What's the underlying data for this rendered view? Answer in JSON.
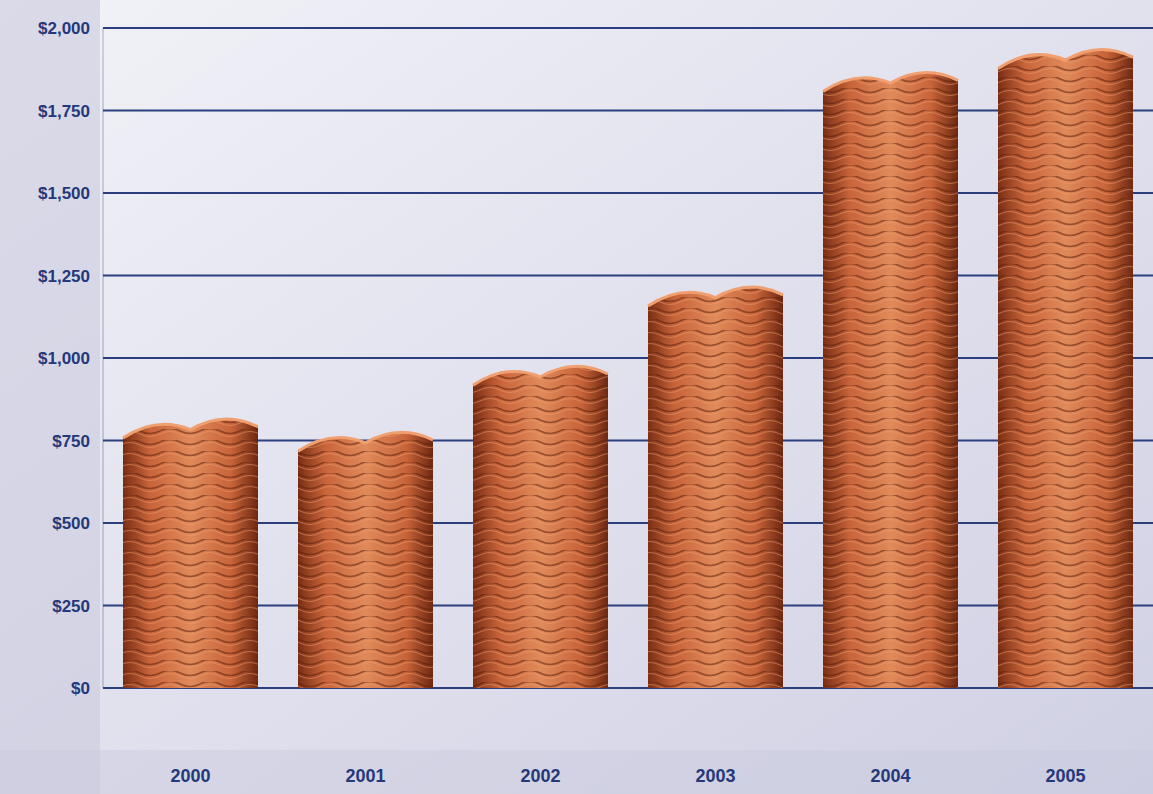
{
  "chart_data": {
    "type": "bar",
    "categories": [
      "2000",
      "2001",
      "2002",
      "2003",
      "2004",
      "2005"
    ],
    "values": [
      800,
      760,
      960,
      1200,
      1850,
      1920
    ],
    "color": "#c8643a",
    "ylim": [
      0,
      2000
    ],
    "yticks": [
      {
        "value": 0,
        "label": "$0"
      },
      {
        "value": 250,
        "label": "$250"
      },
      {
        "value": 500,
        "label": "$500"
      },
      {
        "value": 750,
        "label": "$750"
      },
      {
        "value": 1000,
        "label": "$1,000"
      },
      {
        "value": 1250,
        "label": "$1,250"
      },
      {
        "value": 1500,
        "label": "$1,500"
      },
      {
        "value": 1750,
        "label": "$1,750"
      },
      {
        "value": 2000,
        "label": "$2,000"
      }
    ],
    "grid": true
  }
}
